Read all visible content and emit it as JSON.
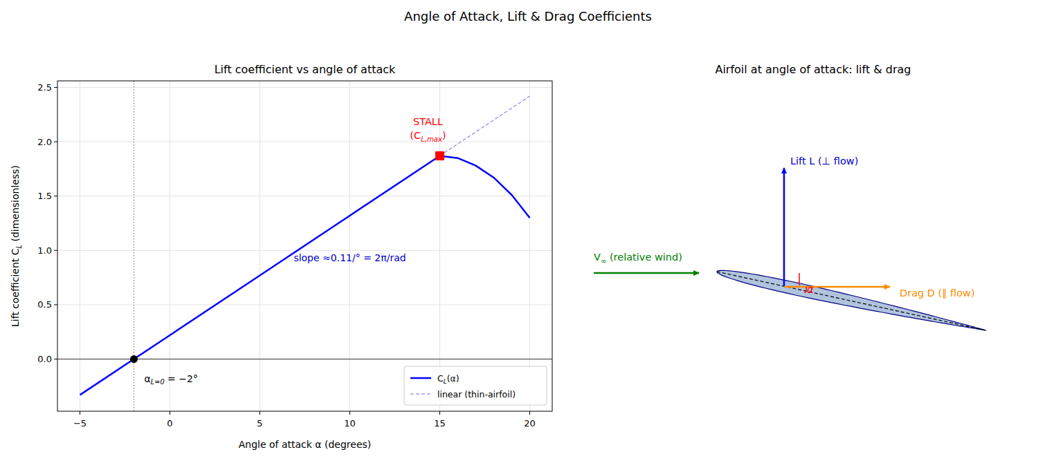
{
  "title": "Angle of Attack, Lift & Drag Coefficients",
  "chart_data": {
    "type": "line",
    "title": "Lift coefficient vs angle of attack",
    "x_label": "Angle of attack  α  (degrees)",
    "y_label": {
      "prefix": "Lift coefficient  C",
      "sub": "L",
      "suffix": "  (dimensionless)"
    },
    "series": [
      {
        "name": {
          "prefix": "C",
          "sub": "L",
          "suffix": "(α)"
        },
        "color": "#0000ff",
        "line_style": "solid",
        "x": [
          -5,
          -2,
          0,
          5,
          10,
          15,
          16,
          17,
          18,
          19,
          20
        ],
        "values": [
          -0.33,
          0,
          0.22,
          0.77,
          1.32,
          1.87,
          1.85,
          1.78,
          1.67,
          1.51,
          1.3
        ]
      },
      {
        "name": "linear (thin-airfoil)",
        "color": "#7b68ee",
        "line_style": "dashed",
        "x": [
          15,
          20
        ],
        "values": [
          1.87,
          2.42
        ]
      }
    ],
    "xlim": [
      -6.25,
      21.25
    ],
    "xticks": [
      {
        "value": -5,
        "label": "−5"
      },
      0,
      5,
      10,
      15,
      20
    ],
    "ylim": [
      -0.48,
      2.56
    ],
    "yticks": [
      {
        "value": 0,
        "label": "0.0"
      },
      {
        "value": 0.5,
        "label": "0.5"
      },
      {
        "value": 1,
        "label": "1.0"
      },
      {
        "value": 1.5,
        "label": "1.5"
      },
      {
        "value": 2,
        "label": "2.0"
      },
      {
        "value": 2.5,
        "label": "2.5"
      }
    ],
    "grid": true,
    "legend": "lower right",
    "reference_lines": [
      {
        "x": -2,
        "line_style": "dotted",
        "color": "#808080"
      },
      {
        "y": 0,
        "line_style": "solid",
        "color": "#000000"
      }
    ],
    "annotations": [
      {
        "text": "STALL",
        "detail": {
          "prefix": "(C",
          "sub": "L,max",
          "suffix": ")"
        },
        "x": 15,
        "y": 1.87,
        "color": "#ff0000",
        "marker": "square"
      },
      {
        "text": {
          "prefix": "α",
          "sub": "L=0",
          "suffix": " = −2°"
        },
        "x": -2,
        "y": 0,
        "color": "#000000",
        "marker": "circle"
      },
      {
        "text": "slope  ≈0.11/° = 2π/rad",
        "x": 10,
        "y": 0.93,
        "color": "#0000cd"
      }
    ]
  },
  "diagram": {
    "title": "Airfoil at angle of attack: lift & drag",
    "wind_label": {
      "prefix": "V",
      "sub": "∞",
      "suffix": " (relative wind)"
    },
    "lift_label": "Lift L (⊥ flow)",
    "drag_label": "Drag D (∥ flow)",
    "alpha_label": "α"
  }
}
